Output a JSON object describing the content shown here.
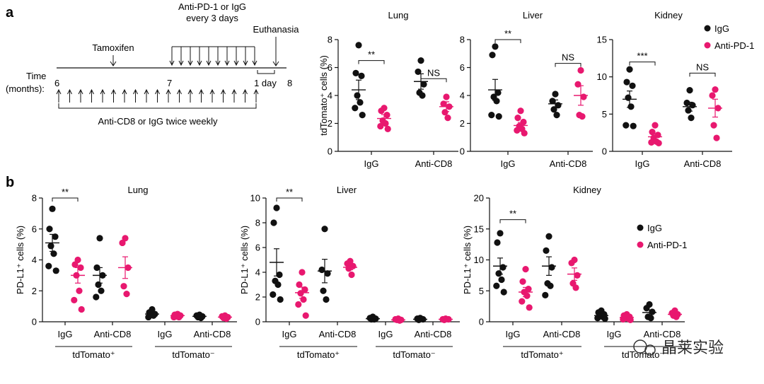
{
  "panels": {
    "a": "a",
    "b": "b"
  },
  "colors": {
    "igg": "#111111",
    "anti_pd1": "#e8186f"
  },
  "timeline": {
    "time_label_line1": "Time",
    "time_label_line2": "(months):",
    "month_start": "6",
    "month_mid": "7",
    "month_end": "8",
    "tamoxifen": "Tamoxifen",
    "pd1_line1": "Anti-PD-1 or IgG",
    "pd1_line2": "every 3 days",
    "euthanasia": "Euthanasia",
    "one_day": "1 day",
    "cd8_label": "Anti-CD8 or IgG twice weekly"
  },
  "legend": {
    "igg": "IgG",
    "anti_pd1": "Anti-PD-1"
  },
  "watermark": "晶莱实验",
  "chart_data": [
    {
      "id": "a-lung",
      "type": "scatter",
      "title": "Lung",
      "ylabel": "tdTomato⁺ cells (%)",
      "ylim": [
        0,
        8
      ],
      "yticks": [
        "0",
        "2",
        "4",
        "6",
        "8"
      ],
      "groups": [
        "IgG",
        "Anti-CD8"
      ],
      "series": [
        {
          "group": 0,
          "name": "IgG",
          "color": "igg",
          "values": [
            7.6,
            5.6,
            5.4,
            4.0,
            3.5,
            3.1,
            2.6
          ],
          "mean": 4.4,
          "sem": 0.7
        },
        {
          "group": 0,
          "name": "Anti-PD-1",
          "color": "anti_pd1",
          "values": [
            3.1,
            2.9,
            2.6,
            2.2,
            2.0,
            1.8,
            1.6
          ],
          "mean": 2.35,
          "sem": 0.28
        },
        {
          "group": 1,
          "name": "IgG",
          "color": "igg",
          "values": [
            6.5,
            5.7,
            4.8,
            4.2,
            4.0
          ],
          "mean": 5.0,
          "sem": 0.55
        },
        {
          "group": 1,
          "name": "Anti-PD-1",
          "color": "anti_pd1",
          "values": [
            3.9,
            3.4,
            3.2,
            2.8,
            2.4
          ],
          "mean": 3.2,
          "sem": 0.35
        }
      ],
      "sig": [
        {
          "group": 0,
          "label": "**",
          "y": 6.5
        },
        {
          "group": 1,
          "label": "NS",
          "y": 5.2
        }
      ]
    },
    {
      "id": "a-liver",
      "type": "scatter",
      "title": "Liver",
      "ylabel": "",
      "ylim": [
        0,
        8
      ],
      "yticks": [
        "0",
        "2",
        "4",
        "6",
        "8"
      ],
      "groups": [
        "IgG",
        "Anti-CD8"
      ],
      "series": [
        {
          "group": 0,
          "name": "IgG",
          "color": "igg",
          "values": [
            7.5,
            6.9,
            4.2,
            3.9,
            3.6,
            2.6,
            2.5
          ],
          "mean": 4.4,
          "sem": 0.75
        },
        {
          "group": 0,
          "name": "Anti-PD-1",
          "color": "anti_pd1",
          "values": [
            2.9,
            2.4,
            2.1,
            1.8,
            1.6,
            1.5,
            1.3
          ],
          "mean": 1.85,
          "sem": 0.22
        },
        {
          "group": 1,
          "name": "IgG",
          "color": "igg",
          "values": [
            4.1,
            3.6,
            3.3,
            3.0,
            2.6
          ],
          "mean": 3.4,
          "sem": 0.28
        },
        {
          "group": 1,
          "name": "Anti-PD-1",
          "color": "anti_pd1",
          "values": [
            5.8,
            4.8,
            3.9,
            2.6,
            2.5
          ],
          "mean": 4.0,
          "sem": 0.7
        }
      ],
      "sig": [
        {
          "group": 0,
          "label": "**",
          "y": 8.0
        },
        {
          "group": 1,
          "label": "NS",
          "y": 6.3
        }
      ]
    },
    {
      "id": "a-kidney",
      "type": "scatter",
      "title": "Kidney",
      "ylabel": "",
      "ylim": [
        0,
        15
      ],
      "yticks": [
        "0",
        "5",
        "10",
        "15"
      ],
      "groups": [
        "IgG",
        "Anti-CD8"
      ],
      "series": [
        {
          "group": 0,
          "name": "IgG",
          "color": "igg",
          "values": [
            11.0,
            9.3,
            8.8,
            7.2,
            6.0,
            3.5,
            3.4
          ],
          "mean": 7.0,
          "sem": 1.1
        },
        {
          "group": 0,
          "name": "Anti-PD-1",
          "color": "anti_pd1",
          "values": [
            3.5,
            2.6,
            2.2,
            1.8,
            1.3,
            1.2,
            1.1
          ],
          "mean": 1.95,
          "sem": 0.35
        },
        {
          "group": 1,
          "name": "IgG",
          "color": "igg",
          "values": [
            8.2,
            6.5,
            6.2,
            5.5,
            4.5
          ],
          "mean": 6.0,
          "sem": 0.6
        },
        {
          "group": 1,
          "name": "Anti-PD-1",
          "color": "anti_pd1",
          "values": [
            8.3,
            7.5,
            5.8,
            3.5,
            1.8
          ],
          "mean": 5.8,
          "sem": 1.2
        }
      ],
      "sig": [
        {
          "group": 0,
          "label": "***",
          "y": 12.0
        },
        {
          "group": 1,
          "label": "NS",
          "y": 10.5
        }
      ]
    },
    {
      "id": "b-lung",
      "type": "scatter",
      "title": "Lung",
      "ylabel": "PD-L1⁺ cells (%)",
      "ylim": [
        0,
        8
      ],
      "yticks": [
        "0",
        "2",
        "4",
        "6",
        "8"
      ],
      "groups": [
        "IgG",
        "Anti-CD8",
        "IgG",
        "Anti-CD8"
      ],
      "group_labels": [
        "tdTomato⁺",
        "tdTomato⁻"
      ],
      "series": [
        {
          "group": 0,
          "name": "IgG",
          "color": "igg",
          "values": [
            7.3,
            6.0,
            5.5,
            4.9,
            4.4,
            3.6,
            3.3
          ],
          "mean": 5.1,
          "sem": 0.55
        },
        {
          "group": 0,
          "name": "Anti-PD-1",
          "color": "anti_pd1",
          "values": [
            4.0,
            3.7,
            3.5,
            3.0,
            2.0,
            1.4,
            0.8
          ],
          "mean": 3.0,
          "sem": 0.5
        },
        {
          "group": 1,
          "name": "IgG",
          "color": "igg",
          "values": [
            5.4,
            3.5,
            3.0,
            2.4,
            2.0,
            1.6
          ],
          "mean": 3.0,
          "sem": 0.5
        },
        {
          "group": 1,
          "name": "Anti-PD-1",
          "color": "anti_pd1",
          "values": [
            5.4,
            5.1,
            3.5,
            2.3,
            1.8
          ],
          "mean": 3.5,
          "sem": 0.7
        },
        {
          "group": 2,
          "name": "IgG",
          "color": "igg",
          "values": [
            0.8,
            0.6,
            0.5,
            0.45,
            0.4,
            0.3
          ],
          "mean": 0.5,
          "sem": 0.08
        },
        {
          "group": 2,
          "name": "Anti-PD-1",
          "color": "anti_pd1",
          "values": [
            0.5,
            0.45,
            0.4,
            0.35,
            0.3,
            0.3
          ],
          "mean": 0.4,
          "sem": 0.05
        },
        {
          "group": 3,
          "name": "IgG",
          "color": "igg",
          "values": [
            0.45,
            0.4,
            0.35,
            0.3,
            0.25
          ],
          "mean": 0.35,
          "sem": 0.04
        },
        {
          "group": 3,
          "name": "Anti-PD-1",
          "color": "anti_pd1",
          "values": [
            0.4,
            0.35,
            0.3,
            0.25,
            0.2
          ],
          "mean": 0.3,
          "sem": 0.04
        }
      ],
      "sig": [
        {
          "group": 0,
          "label": "**",
          "y": 8.0
        }
      ]
    },
    {
      "id": "b-liver",
      "type": "scatter",
      "title": "Liver",
      "ylabel": "PD-L1⁺ cells (%)",
      "ylim": [
        0,
        10
      ],
      "yticks": [
        "0",
        "2",
        "4",
        "6",
        "8",
        "10"
      ],
      "groups": [
        "IgG",
        "Anti-CD8",
        "IgG",
        "Anti-CD8"
      ],
      "group_labels": [
        "tdTomato⁺",
        "tdTomato⁻"
      ],
      "series": [
        {
          "group": 0,
          "name": "IgG",
          "color": "igg",
          "values": [
            9.2,
            8.0,
            3.8,
            3.3,
            3.0,
            2.2,
            1.8
          ],
          "mean": 4.8,
          "sem": 1.1
        },
        {
          "group": 0,
          "name": "Anti-PD-1",
          "color": "anti_pd1",
          "values": [
            4.0,
            3.0,
            2.6,
            2.3,
            1.8,
            1.4,
            0.5
          ],
          "mean": 2.35,
          "sem": 0.45
        },
        {
          "group": 1,
          "name": "IgG",
          "color": "igg",
          "values": [
            7.5,
            4.2,
            3.9,
            2.5,
            1.8
          ],
          "mean": 4.1,
          "sem": 0.95
        },
        {
          "group": 1,
          "name": "Anti-PD-1",
          "color": "anti_pd1",
          "values": [
            4.9,
            4.7,
            4.5,
            4.3,
            3.8
          ],
          "mean": 4.4,
          "sem": 0.2
        },
        {
          "group": 2,
          "name": "IgG",
          "color": "igg",
          "values": [
            0.4,
            0.3,
            0.25,
            0.2,
            0.2
          ],
          "mean": 0.25,
          "sem": 0.03
        },
        {
          "group": 2,
          "name": "Anti-PD-1",
          "color": "anti_pd1",
          "values": [
            0.25,
            0.2,
            0.15,
            0.15,
            0.1
          ],
          "mean": 0.15,
          "sem": 0.02
        },
        {
          "group": 3,
          "name": "IgG",
          "color": "igg",
          "values": [
            0.3,
            0.25,
            0.2,
            0.15
          ],
          "mean": 0.2,
          "sem": 0.03
        },
        {
          "group": 3,
          "name": "Anti-PD-1",
          "color": "anti_pd1",
          "values": [
            0.25,
            0.2,
            0.2,
            0.15
          ],
          "mean": 0.2,
          "sem": 0.02
        }
      ],
      "sig": [
        {
          "group": 0,
          "label": "**",
          "y": 10.0
        }
      ]
    },
    {
      "id": "b-kidney",
      "type": "scatter",
      "title": "Kidney",
      "ylabel": "PD-L1⁺ cells (%)",
      "ylim": [
        0,
        20
      ],
      "yticks": [
        "0",
        "5",
        "10",
        "15",
        "20"
      ],
      "groups": [
        "IgG",
        "Anti-CD8",
        "IgG",
        "Anti-CD8"
      ],
      "group_labels": [
        "tdTomato⁺",
        "tdTomato⁻"
      ],
      "series": [
        {
          "group": 0,
          "name": "IgG",
          "color": "igg",
          "values": [
            14.3,
            12.8,
            8.8,
            7.8,
            6.8,
            5.8,
            4.8
          ],
          "mean": 9.0,
          "sem": 1.3
        },
        {
          "group": 0,
          "name": "Anti-PD-1",
          "color": "anti_pd1",
          "values": [
            8.5,
            6.5,
            5.3,
            4.8,
            4.2,
            3.3,
            2.3
          ],
          "mean": 4.8,
          "sem": 0.75
        },
        {
          "group": 1,
          "name": "IgG",
          "color": "igg",
          "values": [
            13.8,
            11.5,
            8.8,
            6.2,
            5.8,
            4.3
          ],
          "mean": 9.0,
          "sem": 1.5
        },
        {
          "group": 1,
          "name": "Anti-PD-1",
          "color": "anti_pd1",
          "values": [
            10.0,
            9.5,
            7.5,
            6.2,
            5.5
          ],
          "mean": 7.7,
          "sem": 1.0
        },
        {
          "group": 2,
          "name": "IgG",
          "color": "igg",
          "values": [
            1.8,
            1.5,
            1.2,
            1.0,
            0.8,
            0.6,
            0.5
          ],
          "mean": 1.0,
          "sem": 0.2
        },
        {
          "group": 2,
          "name": "Anti-PD-1",
          "color": "anti_pd1",
          "values": [
            1.2,
            1.0,
            0.8,
            0.7,
            0.5,
            0.4,
            0.3
          ],
          "mean": 0.7,
          "sem": 0.12
        },
        {
          "group": 3,
          "name": "IgG",
          "color": "igg",
          "values": [
            2.8,
            2.2,
            1.6,
            0.8,
            0.6
          ],
          "mean": 1.5,
          "sem": 0.4
        },
        {
          "group": 3,
          "name": "Anti-PD-1",
          "color": "anti_pd1",
          "values": [
            1.8,
            1.4,
            1.2,
            1.0,
            0.8
          ],
          "mean": 1.2,
          "sem": 0.2
        }
      ],
      "sig": [
        {
          "group": 0,
          "label": "**",
          "y": 16.5
        }
      ]
    }
  ]
}
